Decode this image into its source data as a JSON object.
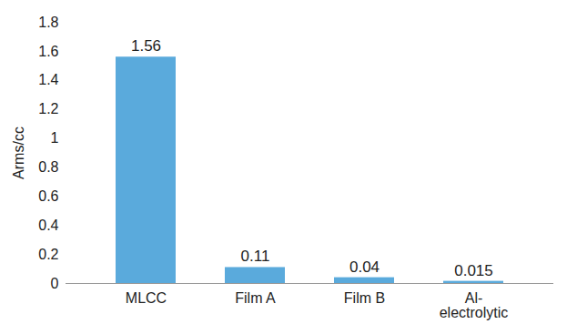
{
  "chart_data": {
    "type": "bar",
    "y_label": "Arms/cc",
    "categories": [
      "MLCC",
      "Film A",
      "Film B",
      "Al-electrolytic"
    ],
    "values": [
      1.56,
      0.11,
      0.04,
      0.015
    ],
    "color": "#5aaadc",
    "ylim": [
      0,
      1.8
    ],
    "yticks": [
      0,
      0.2,
      0.4,
      0.6,
      0.8,
      1,
      1.2,
      1.4,
      1.6,
      1.8
    ],
    "data_labels": true
  }
}
